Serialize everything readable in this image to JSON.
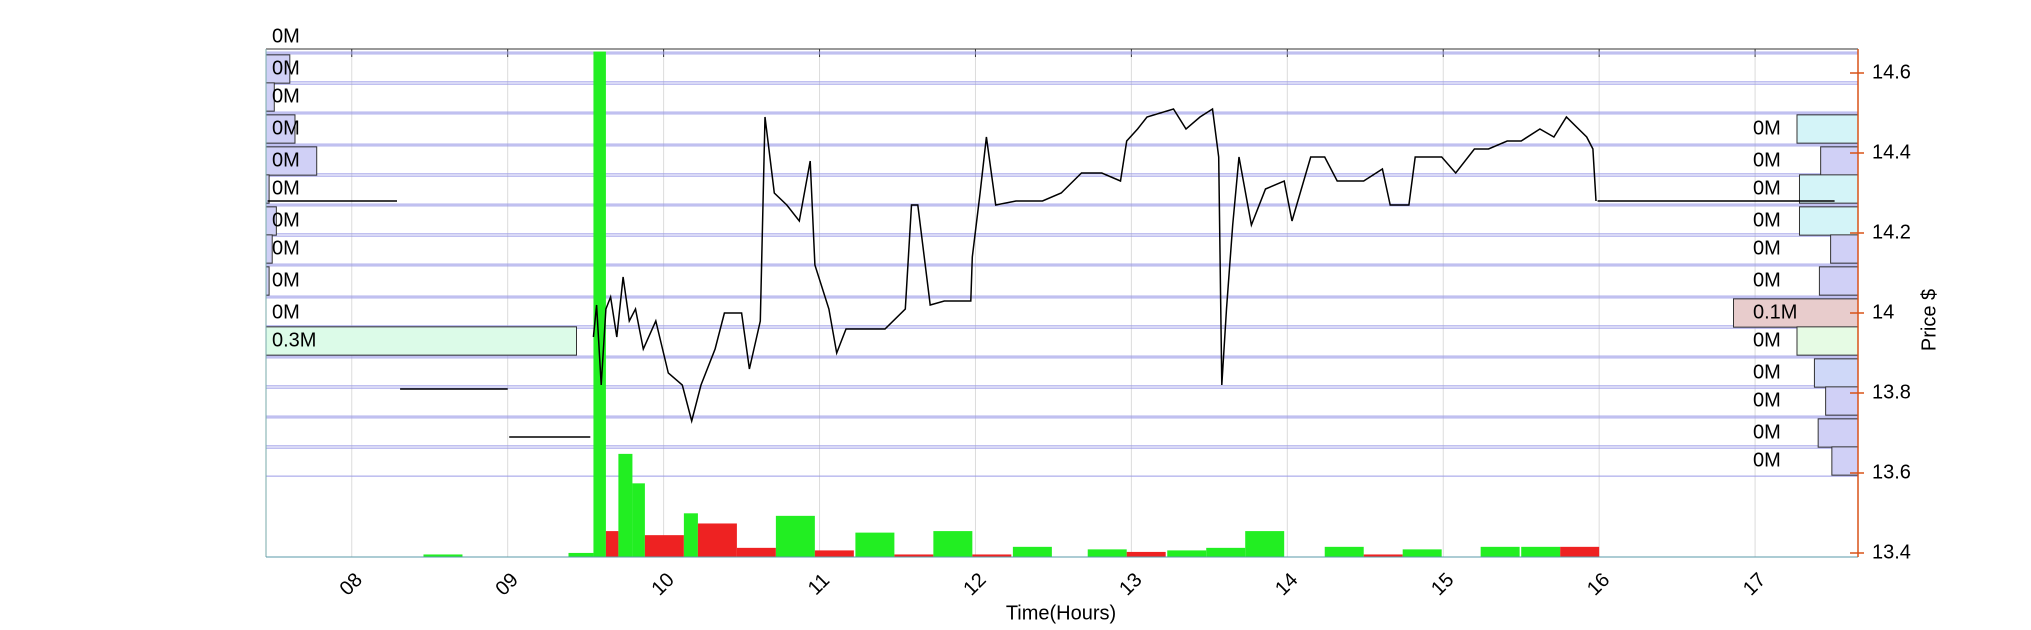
{
  "chart_data": {
    "type": "line",
    "xlabel": "Time(Hours)",
    "ylabel": "Price $",
    "xlim": [
      7.45,
      17.66
    ],
    "ylim": [
      13.39,
      14.66
    ],
    "xticks": [
      {
        "value": 8,
        "label": "08"
      },
      {
        "value": 9,
        "label": "09"
      },
      10,
      11,
      12,
      13,
      14,
      15,
      16,
      17
    ],
    "yticks": [
      13.4,
      13.6,
      13.8,
      14,
      14.2,
      14.4,
      14.6
    ],
    "grid": true,
    "axis_color": "#d95319",
    "price": {
      "color": "#000000",
      "x": [
        7.46,
        8.29,
        8.3,
        8.31,
        9.0,
        9.005,
        9.01,
        9.53,
        9.54,
        9.55,
        9.57,
        9.6,
        9.63,
        9.66,
        9.7,
        9.74,
        9.78,
        9.82,
        9.87,
        9.95,
        10.03,
        10.12,
        10.18,
        10.24,
        10.33,
        10.39,
        10.5,
        10.55,
        10.62,
        10.65,
        10.71,
        10.79,
        10.87,
        10.94,
        10.97,
        11.06,
        11.11,
        11.17,
        11.29,
        11.42,
        11.55,
        11.59,
        11.63,
        11.71,
        11.8,
        11.97,
        11.98,
        12.03,
        12.07,
        12.13,
        12.26,
        12.43,
        12.55,
        12.68,
        12.81,
        12.93,
        12.97,
        13.04,
        13.1,
        13.27,
        13.35,
        13.44,
        13.52,
        13.56,
        13.58,
        13.61,
        13.65,
        13.69,
        13.77,
        13.86,
        13.98,
        14.03,
        14.15,
        14.24,
        14.32,
        14.49,
        14.61,
        14.66,
        14.78,
        14.82,
        14.99,
        15.08,
        15.2,
        15.29,
        15.41,
        15.5,
        15.62,
        15.71,
        15.79,
        15.92,
        15.96,
        15.98,
        15.985,
        15.99,
        17.51
      ],
      "values": [
        14.28,
        14.28,
        null,
        13.81,
        13.81,
        null,
        13.69,
        13.69,
        null,
        13.94,
        14.02,
        13.82,
        14.01,
        14.04,
        13.94,
        14.09,
        13.98,
        14.01,
        13.91,
        13.98,
        13.85,
        13.82,
        13.73,
        13.82,
        13.91,
        14.0,
        14.0,
        13.86,
        13.98,
        14.49,
        14.3,
        14.27,
        14.23,
        14.38,
        14.12,
        14.01,
        13.9,
        13.96,
        13.96,
        13.96,
        14.01,
        14.27,
        14.27,
        14.02,
        14.03,
        14.03,
        14.14,
        14.3,
        14.44,
        14.27,
        14.28,
        14.28,
        14.3,
        14.35,
        14.35,
        14.33,
        14.43,
        14.46,
        14.49,
        14.51,
        14.46,
        14.49,
        14.51,
        14.39,
        13.82,
        14.01,
        14.22,
        14.39,
        14.22,
        14.31,
        14.33,
        14.23,
        14.39,
        14.39,
        14.33,
        14.33,
        14.36,
        14.27,
        14.27,
        14.39,
        14.39,
        14.35,
        14.41,
        14.41,
        14.43,
        14.43,
        14.46,
        14.44,
        14.49,
        14.44,
        14.41,
        14.28,
        null,
        14.28,
        14.28
      ]
    },
    "volume": {
      "vlim": [
        0,
        100
      ],
      "x": [
        8.46,
        9.39,
        9.55,
        9.63,
        9.71,
        9.8,
        9.88,
        10.13,
        10.22,
        10.47,
        10.72,
        10.97,
        11.23,
        11.48,
        11.73,
        11.98,
        12.24,
        12.72,
        12.97,
        13.23,
        13.48,
        13.73,
        14.24,
        14.49,
        14.74,
        15.24,
        15.5,
        15.75
      ],
      "values": [
        0.5,
        0.8,
        99.5,
        5.1,
        20.3,
        14.5,
        4.3,
        8.6,
        6.6,
        1.8,
        8.1,
        1.3,
        4.8,
        0.5,
        5.1,
        0.5,
        2.0,
        1.5,
        1.0,
        1.3,
        1.8,
        5.1,
        2.0,
        0.5,
        1.5,
        2.0,
        2.0,
        2.0
      ],
      "colors": [
        "#22ee22",
        "#22ee22",
        "#22ee22",
        "#ee2222",
        "#22ee22",
        "#22ee22",
        "#ee2222",
        "#22ee22",
        "#ee2222",
        "#ee2222",
        "#22ee22",
        "#ee2222",
        "#22ee22",
        "#ee2222",
        "#22ee22",
        "#ee2222",
        "#22ee22",
        "#22ee22",
        "#ee2222",
        "#22ee22",
        "#22ee22",
        "#22ee22",
        "#22ee22",
        "#ee2222",
        "#22ee22",
        "#22ee22",
        "#22ee22",
        "#ee2222"
      ]
    },
    "profile": {
      "prices": [
        14.69,
        14.61,
        14.54,
        14.46,
        14.38,
        14.31,
        14.23,
        14.16,
        14.08,
        14.0,
        13.93,
        13.85,
        13.78,
        13.7,
        13.63
      ],
      "line_color": "#9a9ae6",
      "left": {
        "values": [
          0,
          0.023,
          0.008,
          0.028,
          0.049,
          0.003,
          0.01,
          0.006,
          0.003,
          0,
          0.3,
          null,
          null,
          null,
          null
        ],
        "value_labels": [
          "0M",
          "0M",
          "0M",
          "0M",
          "0M",
          "0M",
          "0M",
          "0M",
          "0M",
          "0M",
          "0.3M",
          null,
          null,
          null,
          null
        ],
        "colors": [
          "#d0d0f6",
          "#d0d0f6",
          "#d0d0f6",
          "#d0d0f6",
          "#d0d0f6",
          "#d0d0f6",
          "#d0d0f6",
          "#d0d0f6",
          "#d0d0f6",
          "#d0d0f6",
          "#dcfbe8",
          null,
          null,
          null,
          null
        ]
      },
      "right": {
        "values": [
          null,
          null,
          null,
          0.049,
          0.03,
          0.047,
          0.047,
          0.022,
          0.031,
          0.1,
          0.049,
          0.035,
          0.026,
          0.032,
          0.021
        ],
        "value_labels": [
          null,
          null,
          null,
          "0M",
          "0M",
          "0M",
          "0M",
          "0M",
          "0M",
          "0.1M",
          "0M",
          "0M",
          "0M",
          "0M",
          "0M"
        ],
        "colors": [
          null,
          null,
          null,
          "#d4f4f8",
          "#d0d0f6",
          "#d4f4f8",
          "#d4f4f8",
          "#d0d0f6",
          "#d0d0f6",
          "#e8cccc",
          "#e6fbe4",
          "#cfd8f8",
          "#d0d0f6",
          "#d0d0f6",
          "#d0d0f6"
        ]
      }
    }
  }
}
